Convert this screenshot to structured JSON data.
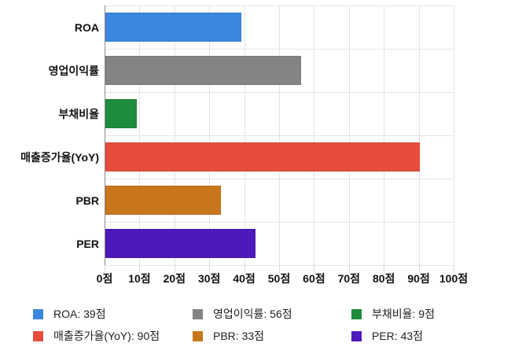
{
  "chart_data": {
    "type": "bar",
    "orientation": "horizontal",
    "title": "",
    "categories": [
      "ROA",
      "영업이익률",
      "부채비율",
      "매출증가율(YoY)",
      "PBR",
      "PER"
    ],
    "values": [
      39,
      56,
      9,
      90,
      33,
      43
    ],
    "colors": [
      "#3B87E0",
      "#848484",
      "#1E8C3C",
      "#E74C3C",
      "#C8761B",
      "#4D18BC"
    ],
    "value_suffix": "점",
    "xlim": [
      0,
      100
    ],
    "x_ticks": [
      0,
      10,
      20,
      30,
      40,
      50,
      60,
      70,
      80,
      90,
      100
    ],
    "x_tick_labels": [
      "0점",
      "10점",
      "20점",
      "30점",
      "40점",
      "50점",
      "60점",
      "70점",
      "80점",
      "90점",
      "100점"
    ],
    "grid": true,
    "legend_position": "bottom",
    "legend_items": [
      {
        "label": "ROA: 39점",
        "color": "#3B87E0"
      },
      {
        "label": "영업이익률: 56점",
        "color": "#848484"
      },
      {
        "label": "부채비율: 9점",
        "color": "#1E8C3C"
      },
      {
        "label": "매출증가율(YoY): 90점",
        "color": "#E74C3C"
      },
      {
        "label": "PBR: 33점",
        "color": "#C8761B"
      },
      {
        "label": "PER: 43점",
        "color": "#4D18BC"
      }
    ],
    "axis_style": {
      "zero_line_color": "#8A8A8A",
      "grid_color": "#E3E3E3",
      "tick_color": "#D9D9D9",
      "label_color": "#111111",
      "legend_text_color": "#212121"
    }
  }
}
